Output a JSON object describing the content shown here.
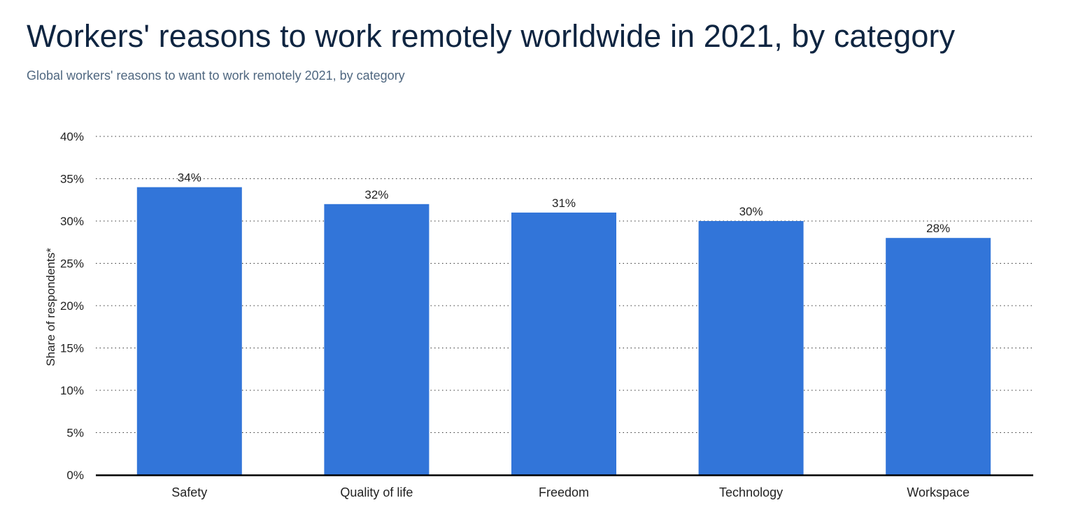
{
  "header": {
    "title": "Workers' reasons to work remotely worldwide in 2021, by category",
    "subtitle": "Global workers' reasons to want to work remotely 2021, by category"
  },
  "chart_data": {
    "type": "bar",
    "title": "Workers' reasons to work remotely worldwide in 2021, by category",
    "subtitle": "Global workers' reasons to want to work remotely 2021, by category",
    "categories": [
      "Safety",
      "Quality of life",
      "Freedom",
      "Technology",
      "Workspace"
    ],
    "values": [
      34,
      32,
      31,
      30,
      28
    ],
    "data_labels": [
      "34%",
      "32%",
      "31%",
      "30%",
      "28%"
    ],
    "xlabel": "",
    "ylabel": "Share of respondents*",
    "ylim": [
      0,
      40
    ],
    "yticks": [
      0,
      5,
      10,
      15,
      20,
      25,
      30,
      35,
      40
    ],
    "ytick_labels": [
      "0%",
      "5%",
      "10%",
      "15%",
      "20%",
      "25%",
      "30%",
      "35%",
      "40%"
    ],
    "grid": "horizontal dotted",
    "bar_color": "#3275d9",
    "grid_color": "#333333",
    "baseline_color": "#000000"
  }
}
